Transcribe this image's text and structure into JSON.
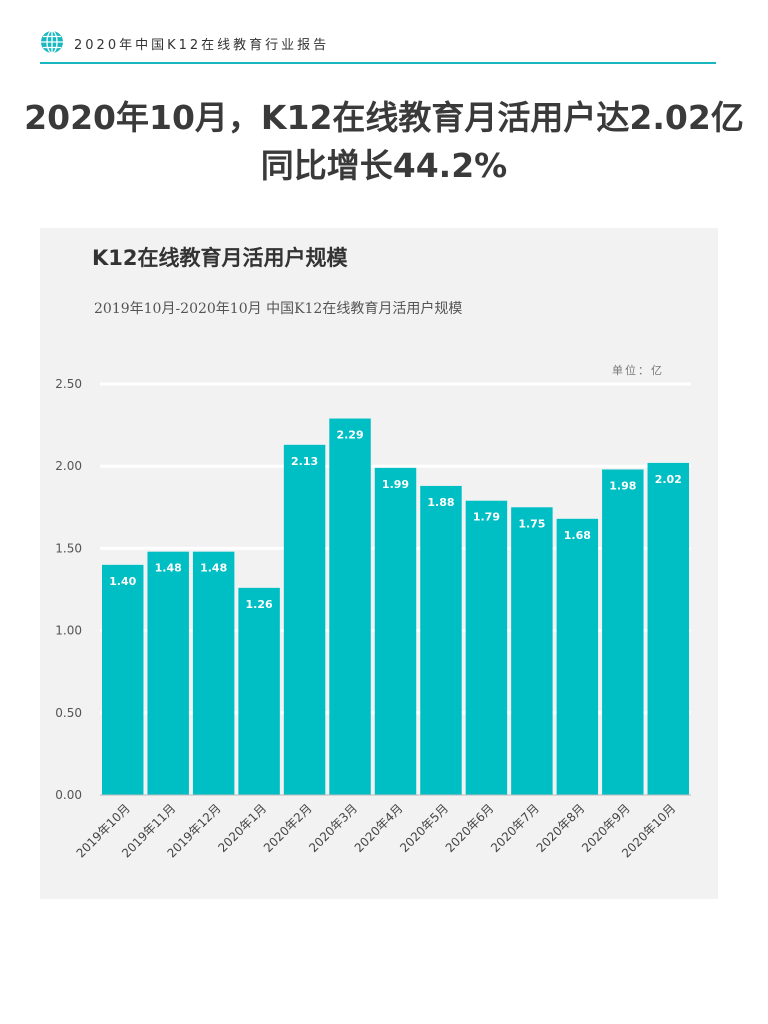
{
  "header": {
    "report_name": "2020年中国K12在线教育行业报告",
    "icon": "globe-icon",
    "accent_color": "#19b7bf"
  },
  "headline": {
    "line1": "2020年10月，K12在线教育月活用户达2.02亿",
    "line2": "同比增长44.2%"
  },
  "chart_data": {
    "type": "bar",
    "title": "K12在线教育月活用户规模",
    "subtitle": "2019年10月-2020年10月 中国K12在线教育月活用户规模",
    "unit": "单位：亿",
    "categories": [
      "2019年10月",
      "2019年11月",
      "2019年12月",
      "2020年1月",
      "2020年2月",
      "2020年3月",
      "2020年4月",
      "2020年5月",
      "2020年6月",
      "2020年7月",
      "2020年8月",
      "2020年9月",
      "2020年10月"
    ],
    "values": [
      1.4,
      1.48,
      1.48,
      1.26,
      2.13,
      2.29,
      1.99,
      1.88,
      1.79,
      1.75,
      1.68,
      1.98,
      2.02
    ],
    "value_labels": [
      "1.40",
      "1.48",
      "1.48",
      "1.26",
      "2.13",
      "2.29",
      "1.99",
      "1.88",
      "1.79",
      "1.75",
      "1.68",
      "1.98",
      "2.02"
    ],
    "yticks": [
      "0.00",
      "0.50",
      "1.00",
      "1.50",
      "2.00",
      "2.50"
    ],
    "ylim": [
      0,
      2.5
    ],
    "bar_color": "#00bfc4",
    "grid": true
  }
}
